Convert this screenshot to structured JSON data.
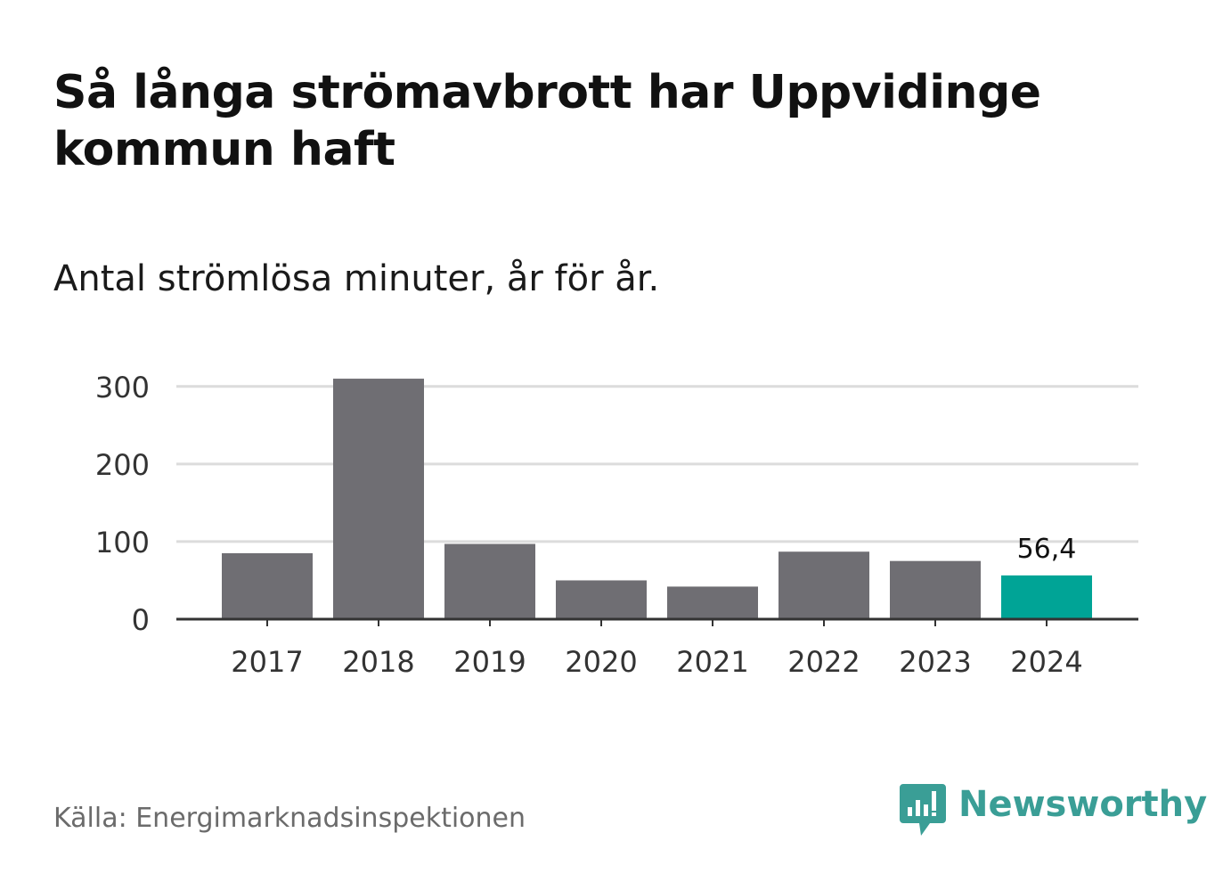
{
  "header": {
    "title": "Så långa strömavbrott har Uppvidinge kommun haft",
    "subtitle": "Antal strömlösa minuter, år för år."
  },
  "footer": {
    "source": "Källa: Energimarknadsinspektionen",
    "brand": "Newsworthy",
    "brand_icon": "newsworthy-logo-icon"
  },
  "colors": {
    "bar_default": "#6f6e73",
    "bar_highlight": "#00a496",
    "gridline": "#dcdcdc",
    "axis": "#333333",
    "brand": "#3a9e96"
  },
  "chart_data": {
    "type": "bar",
    "title": "Så långa strömavbrott har Uppvidinge kommun haft",
    "subtitle": "Antal strömlösa minuter, år för år.",
    "xlabel": "",
    "ylabel": "",
    "categories": [
      "2017",
      "2018",
      "2019",
      "2020",
      "2021",
      "2022",
      "2023",
      "2024"
    ],
    "values": [
      85,
      310,
      97,
      50,
      42,
      87,
      75,
      56.4
    ],
    "highlight_index": 7,
    "highlight_label": "56,4",
    "yticks": [
      0,
      100,
      200,
      300
    ],
    "ytick_labels": [
      "0",
      "100",
      "200",
      "300"
    ],
    "ylim": [
      0,
      320
    ],
    "grid": true,
    "legend": "none"
  }
}
